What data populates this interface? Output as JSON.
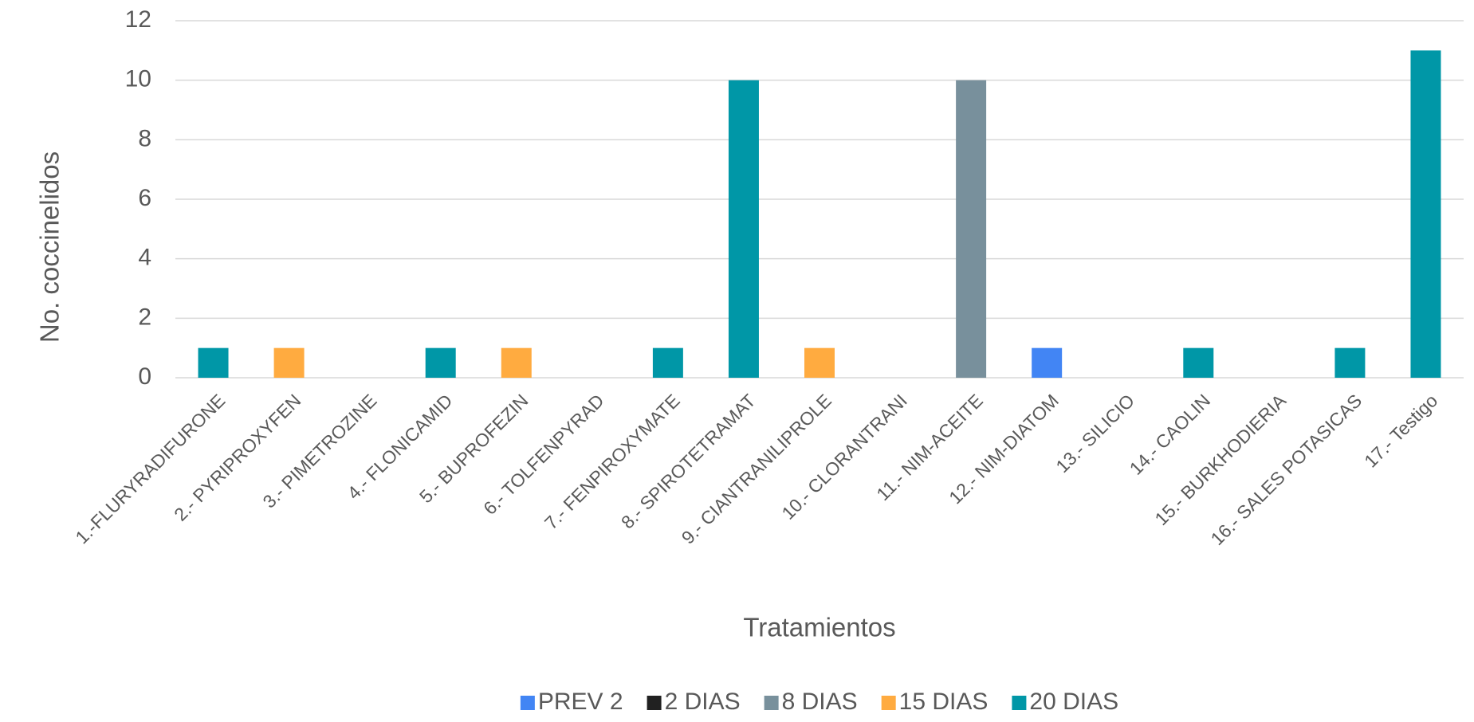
{
  "chart_data": {
    "type": "bar",
    "x_label": "Tratamientos",
    "y_label": "No. coccinelidos",
    "categories": [
      "1.-FLURYRADIFURONE",
      "2.- PYRIPROXYFEN",
      "3.- PIMETROZINE",
      "4.- FLONICAMID",
      "5.- BUPROFEZIN",
      "6.- TOLFENPYRAD",
      "7.- FENPIROXYMATE",
      "8.- SPIROTETRAMAT",
      "9.- CIANTRANILIPROLE",
      "10.- CLORANTRANI",
      "11.- NIM-ACEITE",
      "12.- NIM-DIATOM",
      "13.- SILICIO",
      "14.- CAOLIN",
      "15.- BURKHODIERIA",
      "16.- SALES POTASICAS",
      "17.- Testigo"
    ],
    "series": [
      {
        "name": "PREV 2",
        "color": "#4285f4",
        "values": [
          null,
          null,
          null,
          null,
          null,
          null,
          null,
          null,
          null,
          null,
          null,
          1,
          null,
          null,
          null,
          null,
          null
        ]
      },
      {
        "name": "2 DIAS",
        "color": "#212121",
        "values": [
          null,
          null,
          null,
          null,
          null,
          null,
          null,
          null,
          null,
          null,
          null,
          null,
          null,
          null,
          null,
          null,
          null
        ]
      },
      {
        "name": "8 DIAS",
        "color": "#78909c",
        "values": [
          null,
          null,
          null,
          null,
          null,
          null,
          null,
          null,
          null,
          null,
          10,
          null,
          null,
          null,
          null,
          null,
          null
        ]
      },
      {
        "name": "15 DIAS",
        "color": "#ffab40",
        "values": [
          null,
          1,
          null,
          null,
          1,
          null,
          null,
          null,
          1,
          null,
          null,
          null,
          null,
          null,
          null,
          null,
          null
        ]
      },
      {
        "name": "20 DIAS",
        "color": "#0097a7",
        "values": [
          1,
          null,
          null,
          1,
          null,
          null,
          1,
          10,
          null,
          null,
          null,
          null,
          null,
          1,
          null,
          1,
          11
        ]
      }
    ],
    "ylim": [
      0,
      12
    ],
    "yticks": [
      0,
      2,
      4,
      6,
      8,
      10,
      12
    ],
    "grid": true,
    "legend": "bottom"
  }
}
